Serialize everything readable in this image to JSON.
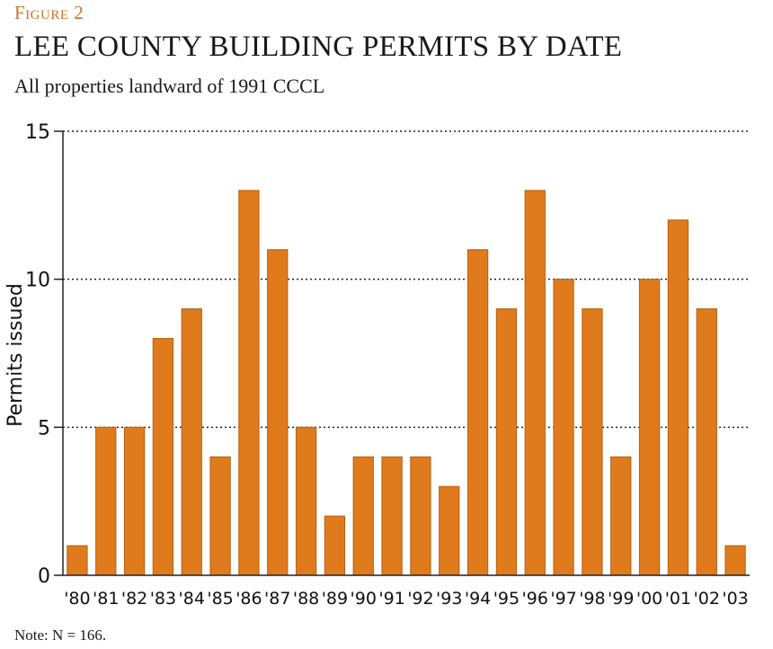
{
  "figure_label": "Figure 2",
  "chart_data": {
    "type": "bar",
    "title": "LEE COUNTY BUILDING PERMITS BY DATE",
    "subtitle": "All properties landward of 1991 CCCL",
    "xlabel": "",
    "ylabel": "Permits issued",
    "ylim": [
      0,
      15
    ],
    "yticks": [
      0,
      5,
      10,
      15
    ],
    "grid": "dotted horizontal",
    "bar_color": "#e07b1d",
    "bar_edge": "#b45f12",
    "categories": [
      "'80",
      "'81",
      "'82",
      "'83",
      "'84",
      "'85",
      "'86",
      "'87",
      "'88",
      "'89",
      "'90",
      "'91",
      "'92",
      "'93",
      "'94",
      "'95",
      "'96",
      "'97",
      "'98",
      "'99",
      "'00",
      "'01",
      "'02",
      "'03"
    ],
    "values": [
      1,
      5,
      5,
      8,
      9,
      4,
      13,
      11,
      5,
      2,
      4,
      4,
      4,
      3,
      11,
      9,
      13,
      10,
      9,
      4,
      10,
      12,
      9,
      1
    ]
  },
  "note": "Note: N = 166."
}
